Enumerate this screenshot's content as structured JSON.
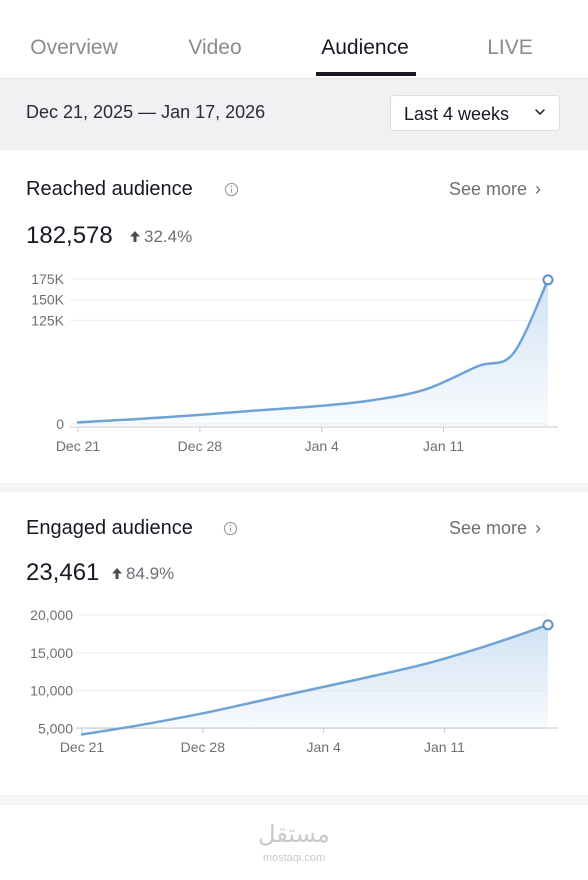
{
  "tabs": [
    {
      "label": "Overview",
      "active": false
    },
    {
      "label": "Video",
      "active": false
    },
    {
      "label": "Audience",
      "active": true
    },
    {
      "label": "LIVE",
      "active": false
    }
  ],
  "date_range": {
    "text": "Dec 21, 2025 — Jan 17, 2026",
    "period_label": "Last 4 weeks",
    "period_icon": "chevron-down-icon"
  },
  "reached": {
    "title": "Reached audience",
    "see_more": "See more",
    "value": "182,578",
    "change": "32.4%",
    "change_direction": "up"
  },
  "engaged": {
    "title": "Engaged audience",
    "see_more": "See more",
    "value": "23,461",
    "change": "84.9%",
    "change_direction": "up"
  },
  "colors": {
    "line": "#6fa3d6",
    "fill_top": "#cfe1f3",
    "text_secondary": "#6e6f76"
  },
  "watermark": {
    "arabic": "مستقل",
    "latin": "mostaqi.com"
  },
  "chart_data": [
    {
      "type": "area",
      "title": "Reached audience",
      "x_ticks": [
        "Dec 21",
        "Dec 28",
        "Jan 4",
        "Jan 11"
      ],
      "y_ticks": [
        "0",
        "125K",
        "150K",
        "175K"
      ],
      "y_tick_values": [
        0,
        125000,
        150000,
        175000
      ],
      "ylim": [
        0,
        175000
      ],
      "x_range": [
        0,
        27
      ],
      "grid": true,
      "series": [
        {
          "values": [
            {
              "x": 0,
              "y": 2000
            },
            {
              "x": 3,
              "y": 5500
            },
            {
              "x": 7,
              "y": 11000
            },
            {
              "x": 10,
              "y": 16000
            },
            {
              "x": 14,
              "y": 22000
            },
            {
              "x": 17,
              "y": 29000
            },
            {
              "x": 20,
              "y": 42000
            },
            {
              "x": 23,
              "y": 70000
            },
            {
              "x": 25,
              "y": 85000
            },
            {
              "x": 27,
              "y": 174000
            }
          ]
        }
      ]
    },
    {
      "type": "area",
      "title": "Engaged audience",
      "x_ticks": [
        "Dec 21",
        "Dec 28",
        "Jan 4",
        "Jan 11"
      ],
      "y_ticks": [
        "5,000",
        "10,000",
        "15,000",
        "20,000"
      ],
      "y_tick_values": [
        5000,
        10000,
        15000,
        20000
      ],
      "ylim": [
        4000,
        20000
      ],
      "x_range": [
        0,
        27
      ],
      "grid": true,
      "series": [
        {
          "values": [
            {
              "x": 0,
              "y": 4200
            },
            {
              "x": 3,
              "y": 5300
            },
            {
              "x": 7,
              "y": 7000
            },
            {
              "x": 10,
              "y": 8500
            },
            {
              "x": 14,
              "y": 10500
            },
            {
              "x": 17,
              "y": 12000
            },
            {
              "x": 20,
              "y": 13600
            },
            {
              "x": 23,
              "y": 15600
            },
            {
              "x": 25,
              "y": 17100
            },
            {
              "x": 27,
              "y": 18700
            }
          ]
        }
      ]
    }
  ]
}
